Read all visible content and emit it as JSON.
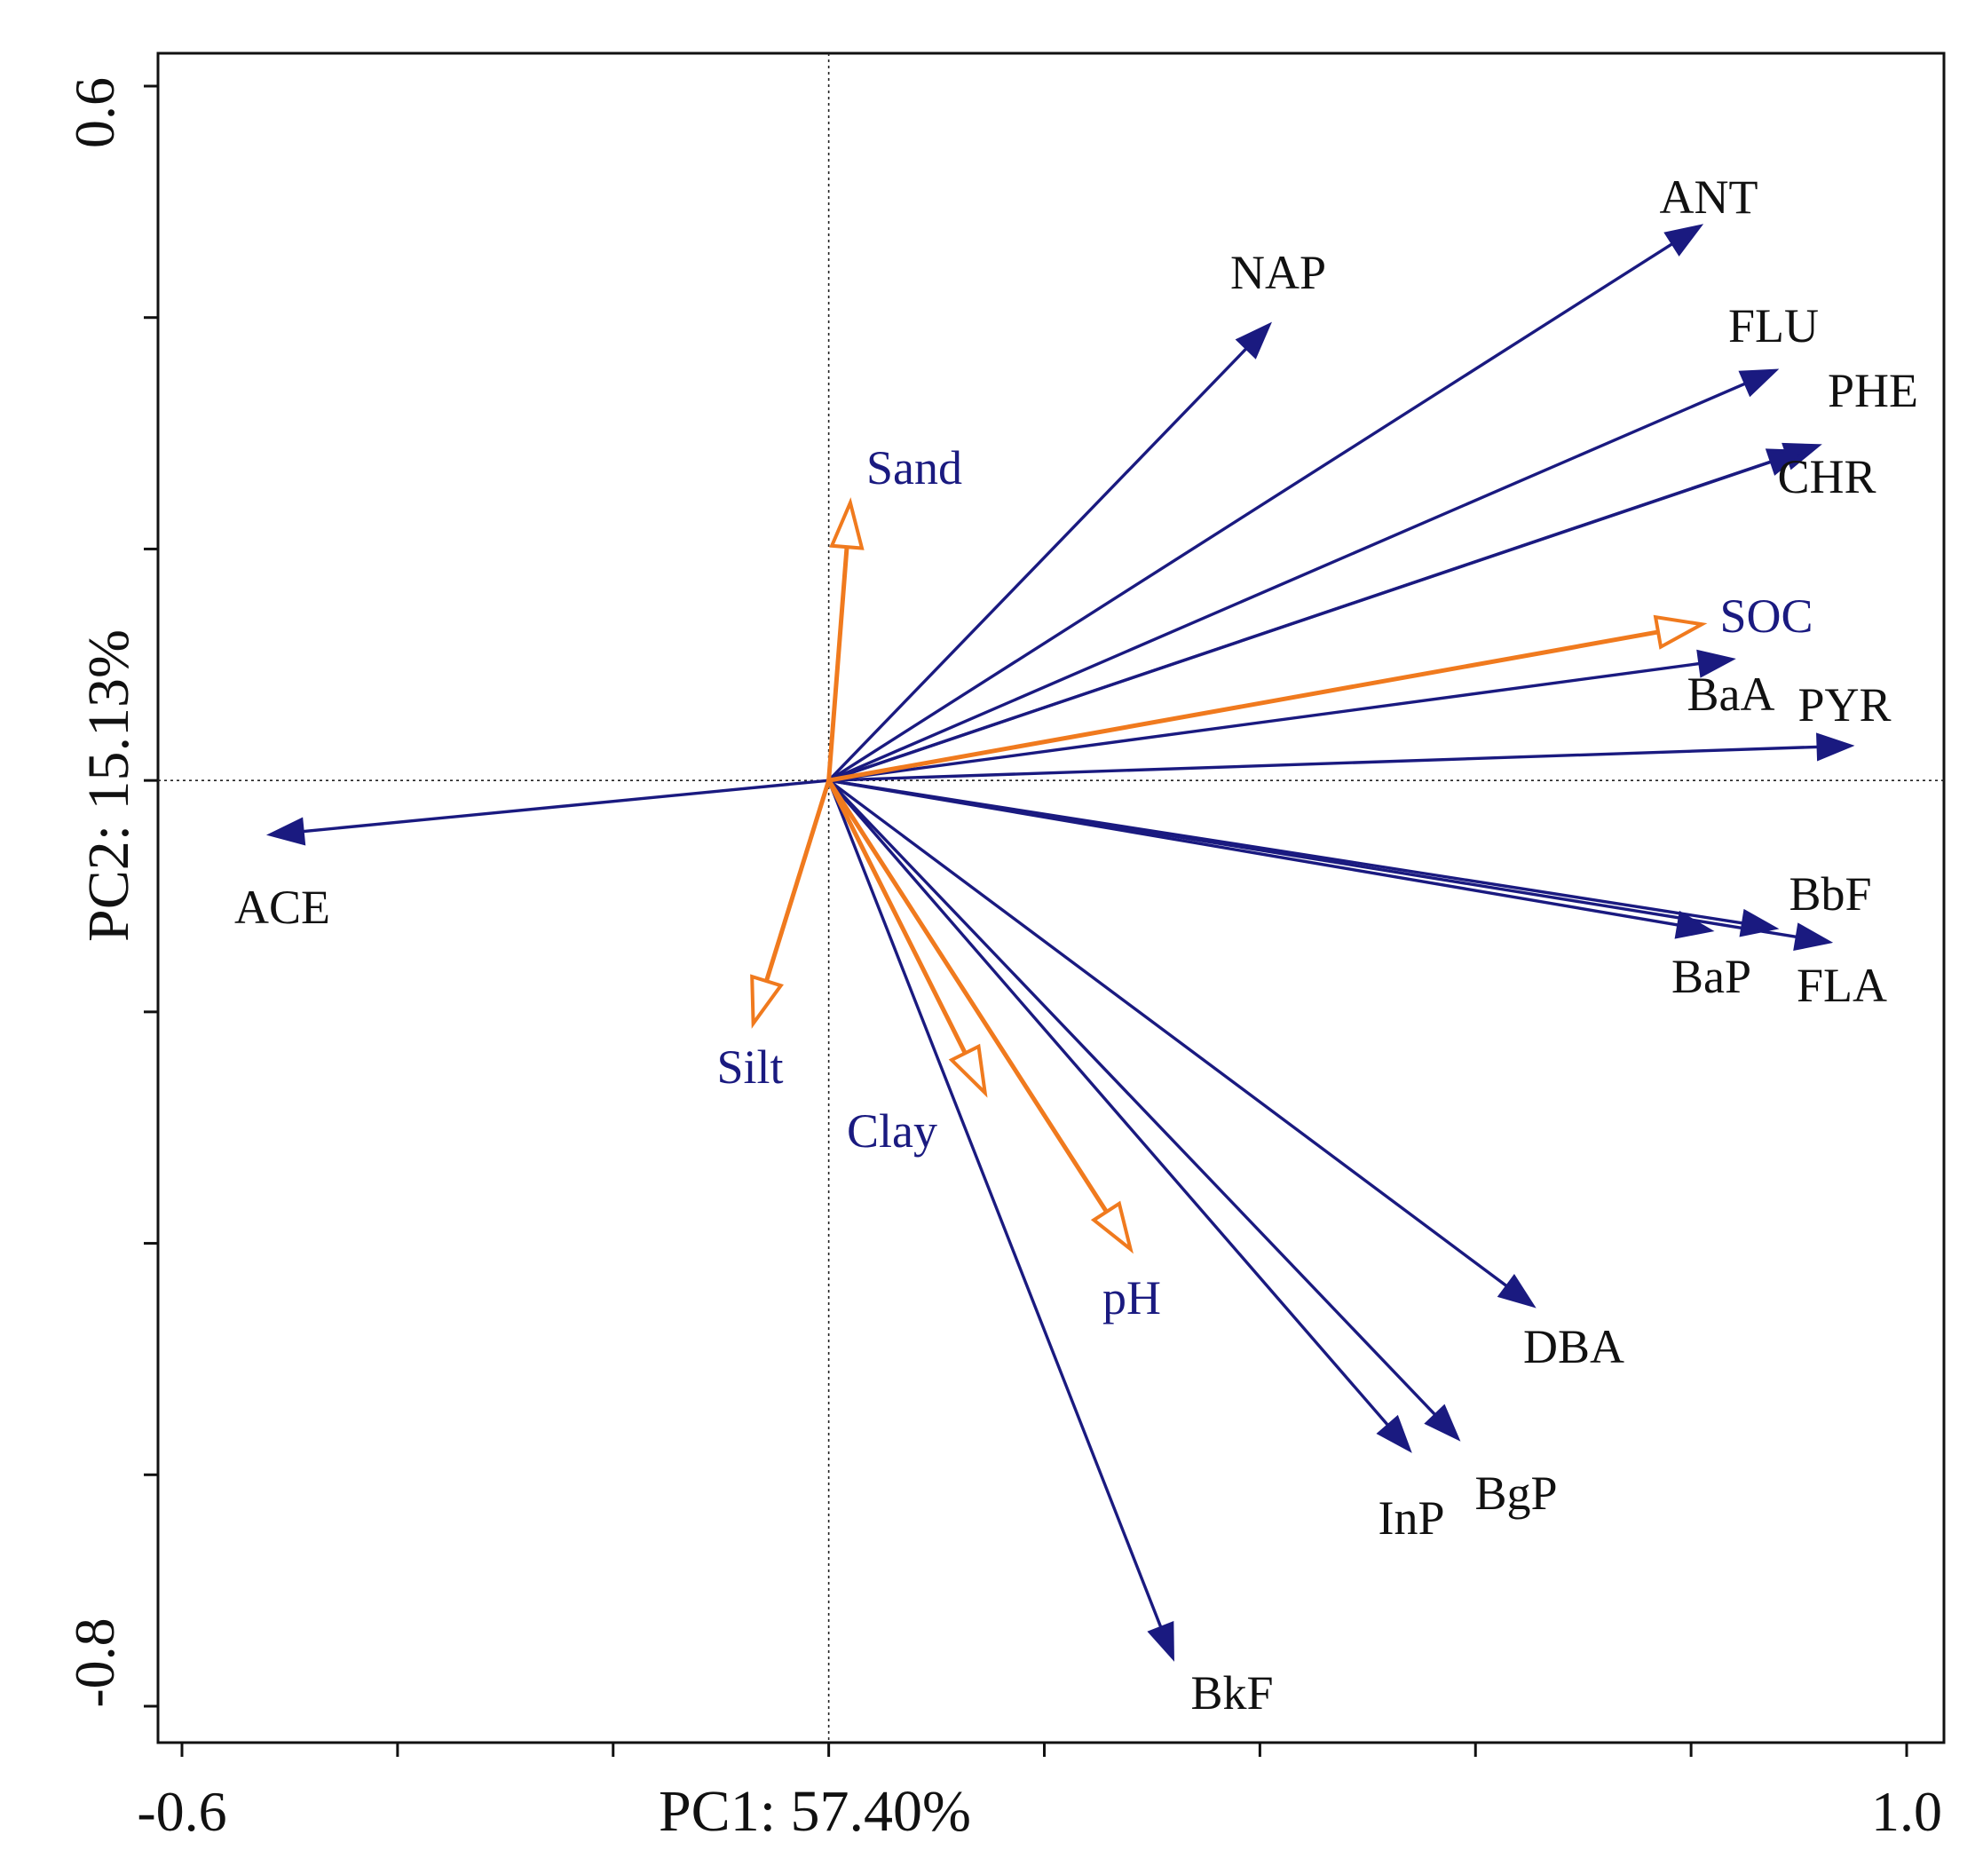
{
  "chart_data": {
    "type": "biplot",
    "xlabel": "PC1: 57.40%",
    "ylabel": "PC2: 15.13%",
    "xlim": [
      -0.6,
      1.0
    ],
    "ylim": [
      -0.8,
      0.6
    ],
    "x_tick_labels": [
      "-0.6",
      "1.0"
    ],
    "y_tick_labels": [
      "0.6",
      "-0.8"
    ],
    "reference_lines": "dotted lines at x = 0 and y = 0",
    "grid": false,
    "series": [
      {
        "group": "response",
        "arrow_style": "filled",
        "colors": {
          "arrow": "#1a1a80",
          "label": "#111111"
        },
        "vectors": [
          {
            "label": "ACE",
            "x": -0.52,
            "y": -0.047
          },
          {
            "label": "NAP",
            "x": 0.41,
            "y": 0.395
          },
          {
            "label": "ANT",
            "x": 0.81,
            "y": 0.48
          },
          {
            "label": "FLU",
            "x": 0.88,
            "y": 0.355
          },
          {
            "label": "PHE",
            "x": 0.92,
            "y": 0.29
          },
          {
            "label": "CHR",
            "x": 0.905,
            "y": 0.285
          },
          {
            "label": "BaA",
            "x": 0.84,
            "y": 0.105
          },
          {
            "label": "PYR",
            "x": 0.95,
            "y": 0.03
          },
          {
            "label": "BbF",
            "x": 0.88,
            "y": -0.128
          },
          {
            "label": "FLA",
            "x": 0.93,
            "y": -0.14
          },
          {
            "label": "BaP",
            "x": 0.82,
            "y": -0.13
          },
          {
            "label": "DBA",
            "x": 0.655,
            "y": -0.455
          },
          {
            "label": "BgP",
            "x": 0.585,
            "y": -0.57
          },
          {
            "label": "InP",
            "x": 0.54,
            "y": -0.58
          },
          {
            "label": "BkF",
            "x": 0.32,
            "y": -0.76
          }
        ]
      },
      {
        "group": "explanatory",
        "arrow_style": "hollow",
        "colors": {
          "arrow": "#f07a1e",
          "label": "#1a1a80"
        },
        "vectors": [
          {
            "label": "Sand",
            "x": 0.02,
            "y": 0.24
          },
          {
            "label": "SOC",
            "x": 0.81,
            "y": 0.135
          },
          {
            "label": "Silt",
            "x": -0.07,
            "y": -0.21
          },
          {
            "label": "Clay",
            "x": 0.145,
            "y": -0.27
          },
          {
            "label": "pH",
            "x": 0.28,
            "y": -0.405
          }
        ]
      }
    ]
  }
}
